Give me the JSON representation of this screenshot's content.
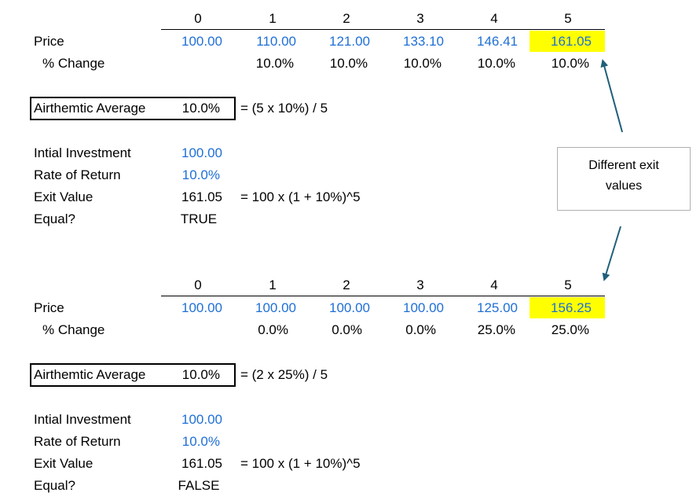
{
  "section1": {
    "periods": [
      "0",
      "1",
      "2",
      "3",
      "4",
      "5"
    ],
    "price_label": "Price",
    "prices": [
      "100.00",
      "110.00",
      "121.00",
      "133.10",
      "146.41",
      "161.05"
    ],
    "change_label": "% Change",
    "changes": [
      "",
      "10.0%",
      "10.0%",
      "10.0%",
      "10.0%",
      "10.0%"
    ],
    "avg_label": "Airthemtic Average",
    "avg_value": "10.0%",
    "avg_formula": "= (5 x 10%) / 5",
    "invest_label": "Intial Investment",
    "invest_value": "100.00",
    "ror_label": "Rate of Return",
    "ror_value": "10.0%",
    "exit_label": "Exit Value",
    "exit_value": "161.05",
    "exit_formula": "= 100 x (1 + 10%)^5",
    "equal_label": "Equal?",
    "equal_value": "TRUE"
  },
  "section2": {
    "periods": [
      "0",
      "1",
      "2",
      "3",
      "4",
      "5"
    ],
    "price_label": "Price",
    "prices": [
      "100.00",
      "100.00",
      "100.00",
      "100.00",
      "125.00",
      "156.25"
    ],
    "change_label": "% Change",
    "changes": [
      "",
      "0.0%",
      "0.0%",
      "0.0%",
      "25.0%",
      "25.0%"
    ],
    "avg_label": "Airthemtic Average",
    "avg_value": "10.0%",
    "avg_formula": "= (2 x 25%) / 5",
    "invest_label": "Intial Investment",
    "invest_value": "100.00",
    "ror_label": "Rate of Return",
    "ror_value": "10.0%",
    "exit_label": "Exit Value",
    "exit_value": "161.05",
    "exit_formula": "= 100 x (1 + 10%)^5",
    "equal_label": "Equal?",
    "equal_value": "FALSE"
  },
  "callout": {
    "line1": "Different exit",
    "line2": "values"
  },
  "colors": {
    "input_blue": "#1f6fd6",
    "highlight_yellow": "#ffff00",
    "arrow": "#1f5f7a"
  }
}
